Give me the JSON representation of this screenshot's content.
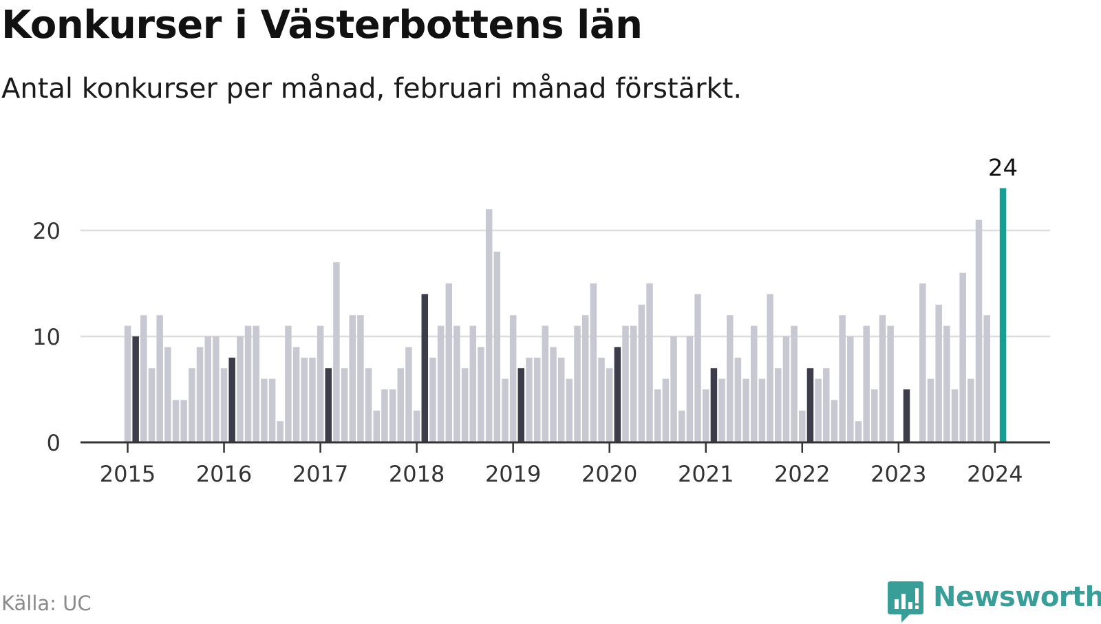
{
  "chart_data": {
    "type": "bar",
    "title": "Konkurser i Västerbottens län",
    "subtitle": "Antal konkurser per månad, februari månad förstärkt.",
    "xlabel": "",
    "ylabel": "",
    "ylim": [
      0,
      25
    ],
    "yticks": [
      0,
      10,
      20
    ],
    "xticks": [
      "2015",
      "2016",
      "2017",
      "2018",
      "2019",
      "2020",
      "2021",
      "2022",
      "2023",
      "2024"
    ],
    "grid": true,
    "x_start": "2015-01",
    "values": [
      11,
      10,
      12,
      7,
      12,
      9,
      4,
      4,
      7,
      9,
      10,
      10,
      7,
      8,
      10,
      11,
      11,
      6,
      6,
      2,
      11,
      9,
      8,
      8,
      11,
      7,
      17,
      7,
      12,
      12,
      7,
      3,
      5,
      5,
      7,
      9,
      3,
      14,
      8,
      11,
      15,
      11,
      7,
      11,
      9,
      22,
      18,
      6,
      12,
      7,
      8,
      8,
      11,
      9,
      8,
      6,
      11,
      12,
      15,
      8,
      7,
      9,
      11,
      11,
      13,
      15,
      5,
      6,
      10,
      3,
      10,
      14,
      5,
      7,
      6,
      12,
      8,
      6,
      11,
      6,
      14,
      7,
      10,
      11,
      3,
      7,
      6,
      7,
      4,
      12,
      10,
      2,
      11,
      5,
      12,
      11,
      0,
      5,
      0,
      15,
      6,
      13,
      11,
      5,
      16,
      6,
      21,
      12,
      0,
      24
    ],
    "last_value_label": "24",
    "colors": {
      "bar": "#c8c8d3",
      "february": "#3d3c4a",
      "latest": "#14a095",
      "grid": "#dcdcdc",
      "axis": "#333333"
    }
  },
  "footer": {
    "source": "Källa: UC",
    "brand": "Newsworthy"
  }
}
